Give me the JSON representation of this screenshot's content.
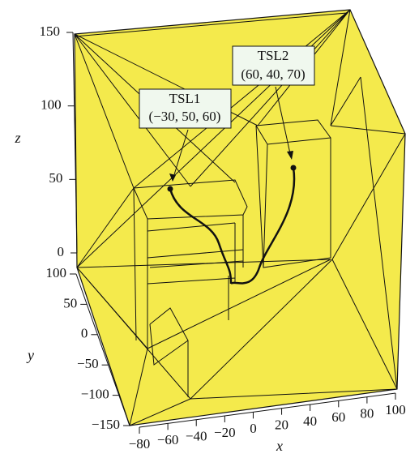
{
  "chart_data": {
    "type": "surface3d",
    "annotations": [
      {
        "label": "TSL1",
        "coords": "(−30, 50, 60)"
      },
      {
        "label": "TSL2",
        "coords": "(60, 40, 70)"
      }
    ],
    "xlabel": "x",
    "ylabel": "y",
    "zlabel": "z",
    "xlim": [
      -80,
      100
    ],
    "xticks": [
      {
        "value": -80,
        "label": "−80"
      },
      {
        "value": -60,
        "label": "−60"
      },
      {
        "value": -40,
        "label": "−40"
      },
      {
        "value": -20,
        "label": "−20"
      },
      0,
      20,
      40,
      60,
      80,
      100
    ],
    "ylim": [
      -150,
      100
    ],
    "yticks": [
      100,
      50,
      0,
      {
        "value": -50,
        "label": "−50"
      },
      {
        "value": -100,
        "label": "−100"
      },
      {
        "value": -150,
        "label": "−150"
      }
    ],
    "zlim": [
      0,
      150
    ],
    "zticks": [
      0,
      50,
      100,
      150
    ],
    "color": "#f4ea4c"
  }
}
